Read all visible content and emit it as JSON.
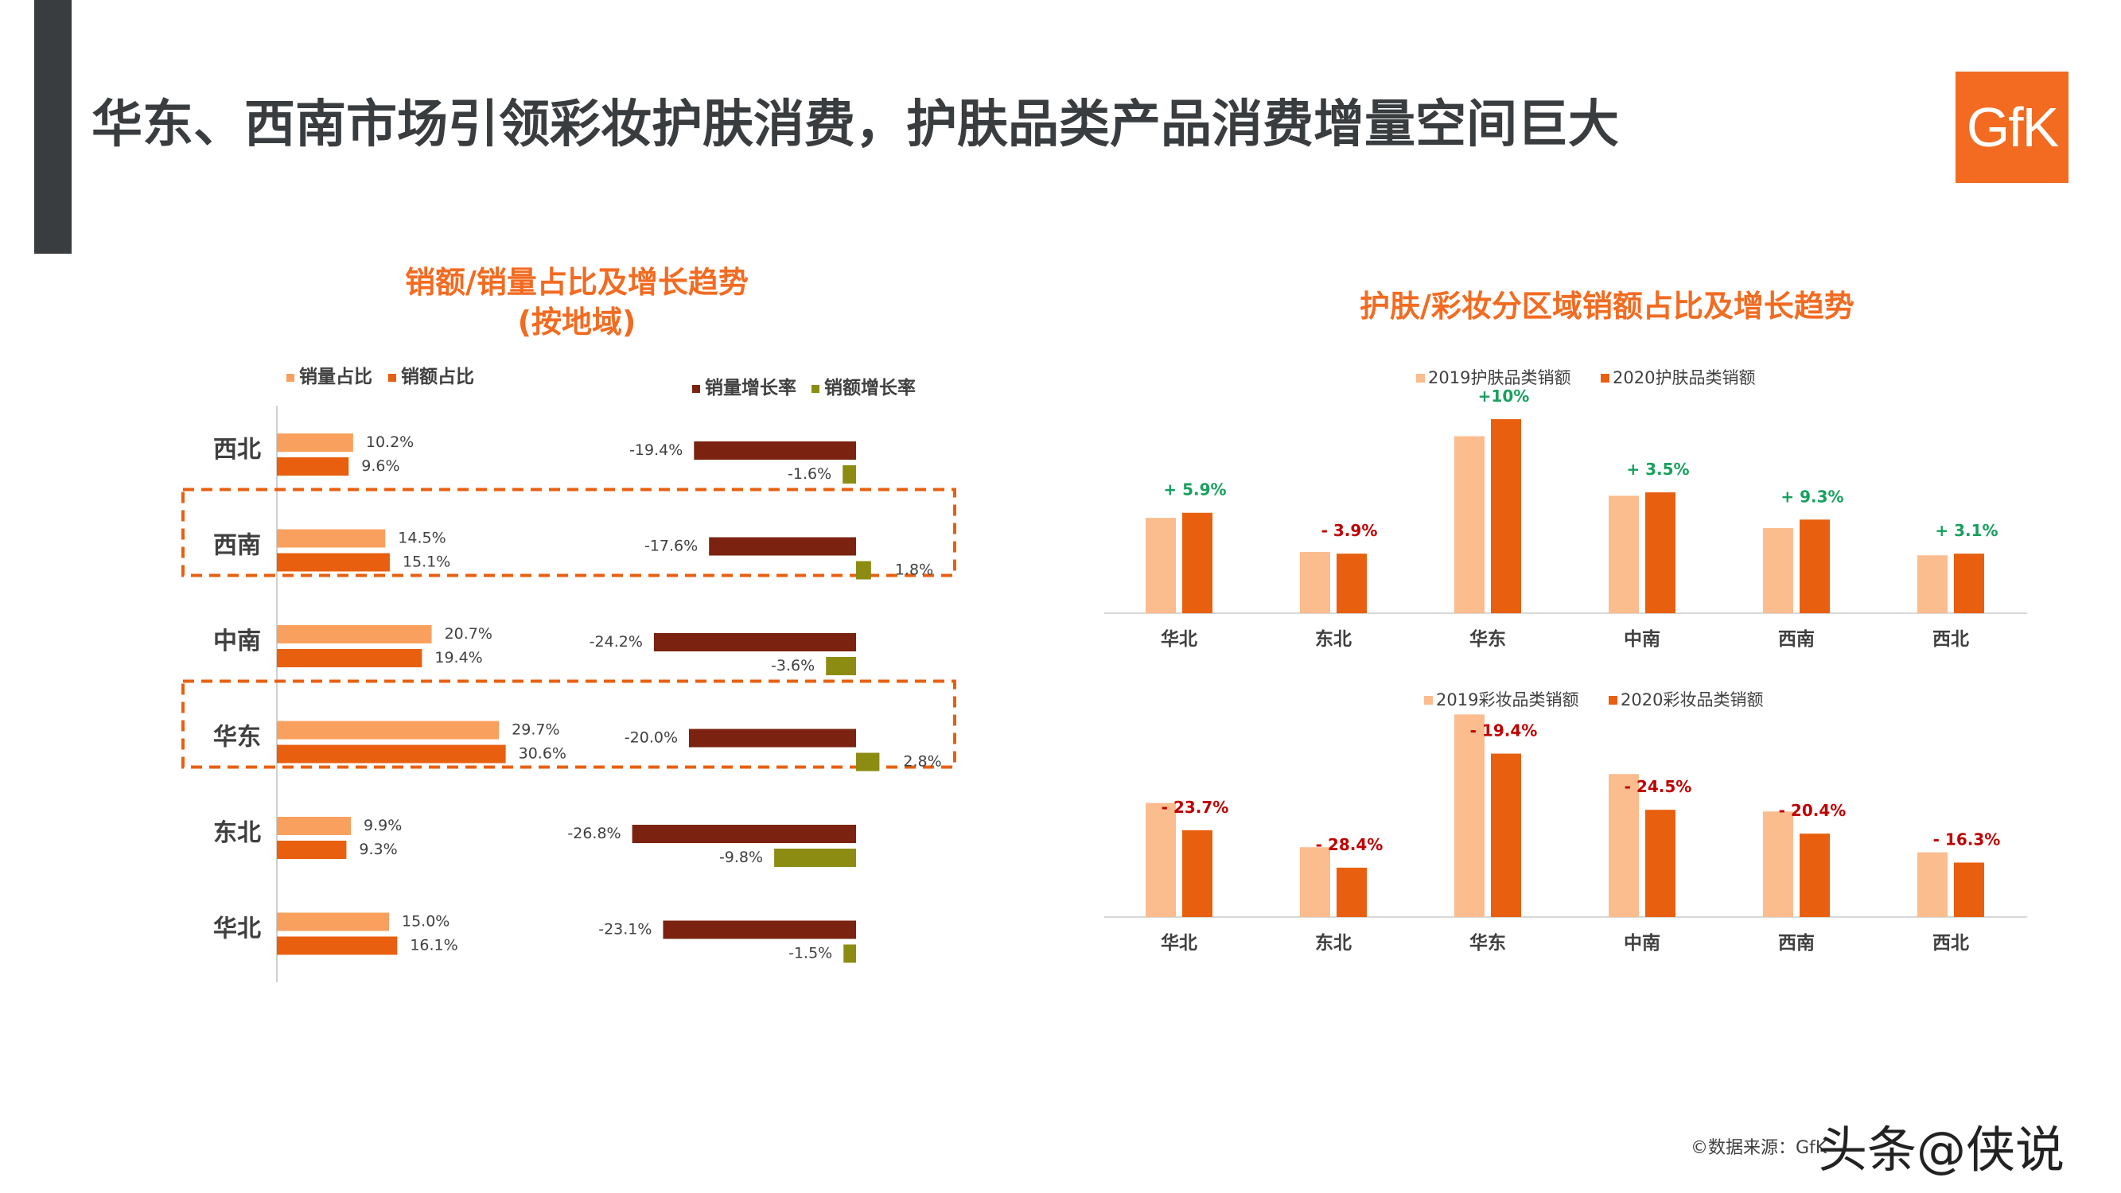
{
  "page": {
    "title": "华东、西南市场引领彩妆护肤消费，护肤品类产品消费增量空间巨大",
    "logo_text": "GfK",
    "source": "©数据来源：GfK",
    "watermark": "头条@侠说",
    "colors": {
      "orange": "#f26b21",
      "dark": "#3a3d3f"
    }
  },
  "chart_data": [
    {
      "type": "bar",
      "orientation": "horizontal",
      "title": "销额/销量占比及增长趋势",
      "subtitle": "(按地域)",
      "categories": [
        "西北",
        "西南",
        "中南",
        "华东",
        "东北",
        "华北"
      ],
      "highlighted": [
        "西南",
        "华东"
      ],
      "share_legend": [
        "销量占比",
        "销额占比"
      ],
      "growth_legend": [
        "销量增长率",
        "销额增长率"
      ],
      "series": [
        {
          "name": "销量占比",
          "color": "#f9a05e",
          "values": [
            10.2,
            14.5,
            20.7,
            29.7,
            9.9,
            15.0
          ],
          "labels": [
            "10.2%",
            "14.5%",
            "20.7%",
            "29.7%",
            "9.9%",
            "15.0%"
          ]
        },
        {
          "name": "销额占比",
          "color": "#e8600f",
          "values": [
            9.6,
            15.1,
            19.4,
            30.6,
            9.3,
            16.1
          ],
          "labels": [
            "9.6%",
            "15.1%",
            "19.4%",
            "30.6%",
            "9.3%",
            "16.1%"
          ]
        },
        {
          "name": "销量增长率",
          "color": "#7b2310",
          "values": [
            -19.4,
            -17.6,
            -24.2,
            -20.0,
            -26.8,
            -23.1
          ],
          "labels": [
            "-19.4%",
            "-17.6%",
            "-24.2%",
            "-20.0%",
            "-26.8%",
            "-23.1%"
          ]
        },
        {
          "name": "销额增长率",
          "color": "#8c8c12",
          "values": [
            -1.6,
            1.8,
            -3.6,
            2.8,
            -9.8,
            -1.5
          ],
          "labels": [
            "-1.6%",
            "1.8%",
            "-3.6%",
            "2.8%",
            "-9.8%",
            "-1.5%"
          ]
        }
      ]
    },
    {
      "type": "bar",
      "title": "护肤/彩妆分区域销额占比及增长趋势",
      "categories": [
        "华北",
        "东北",
        "华东",
        "中南",
        "西南",
        "西北"
      ],
      "series": [
        {
          "name": "2019护肤品类销额",
          "color": "#fbbc8e",
          "values": [
            56,
            36,
            104,
            69,
            50,
            34
          ]
        },
        {
          "name": "2020护肤品类销额",
          "color": "#e8600f",
          "values": [
            59,
            35,
            114,
            71,
            55,
            35
          ]
        }
      ],
      "growth_labels": [
        "+ 5.9%",
        "- 3.9%",
        "+10%",
        "+ 3.5%",
        "+ 9.3%",
        "+ 3.1%"
      ],
      "growth_colors": [
        "#17a05d",
        "#c00000",
        "#17a05d",
        "#17a05d",
        "#17a05d",
        "#17a05d"
      ]
    },
    {
      "type": "bar",
      "categories": [
        "华北",
        "东北",
        "华东",
        "中南",
        "西南",
        "西北"
      ],
      "series": [
        {
          "name": "2019彩妆品类销额",
          "color": "#fbbc8e",
          "values": [
            67,
            41,
            119,
            84,
            62,
            38
          ]
        },
        {
          "name": "2020彩妆品类销额",
          "color": "#e8600f",
          "values": [
            51,
            29,
            96,
            63,
            49,
            32
          ]
        }
      ],
      "growth_labels": [
        "- 23.7%",
        "- 28.4%",
        "- 19.4%",
        "- 24.5%",
        "- 20.4%",
        "- 16.3%"
      ],
      "growth_colors": [
        "#c00000",
        "#c00000",
        "#c00000",
        "#c00000",
        "#c00000",
        "#c00000"
      ]
    }
  ]
}
